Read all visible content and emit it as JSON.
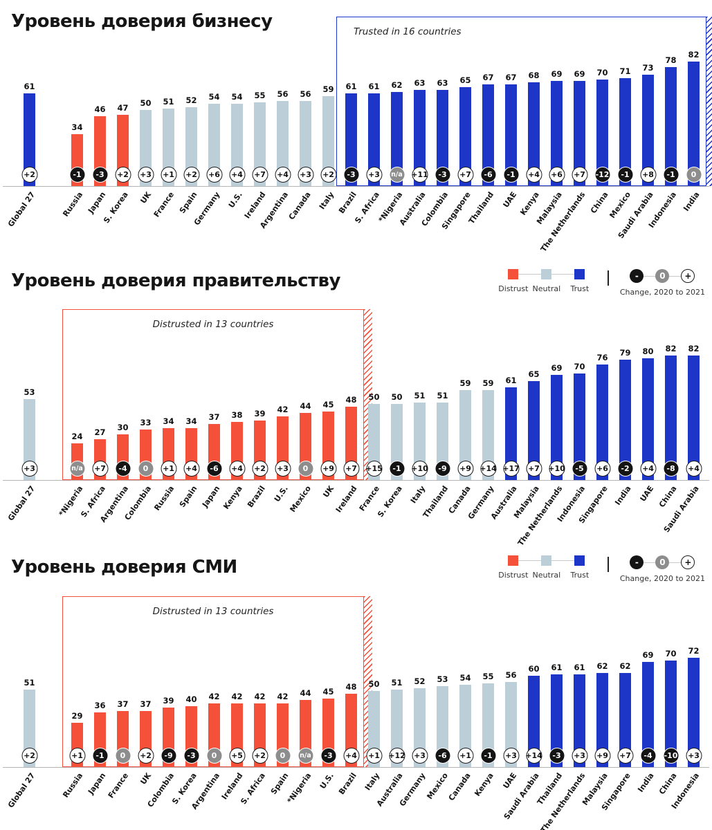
{
  "page": {
    "legend": {
      "distrust_label": "Distrust",
      "neutral_label": "Neutral",
      "trust_label": "Trust",
      "minus_symbol": "-",
      "zero_symbol": "0",
      "plus_symbol": "+",
      "change_label": "Change, 2020 to 2021"
    },
    "colors": {
      "distrust": "#f5503a",
      "neutral": "#bccfd9",
      "trust": "#1e36c8",
      "badge_negative": "#141414",
      "badge_zero": "#8d8d8d",
      "axis": "#b5b5b5"
    }
  },
  "chart_data": [
    {
      "type": "bar",
      "title": "Уровень доверия бизнесу",
      "ylim": [
        0,
        100
      ],
      "legend_visible": false,
      "annotation": {
        "label": "Trusted in 16 countries",
        "kind": "trust",
        "start": 13,
        "end": 28,
        "align": "left"
      },
      "bars": [
        {
          "label": "Global 27",
          "value": 61,
          "change": "+2"
        },
        {
          "label": "Russia",
          "value": 34,
          "change": "-1"
        },
        {
          "label": "Japan",
          "value": 46,
          "change": "-3"
        },
        {
          "label": "S. Korea",
          "value": 47,
          "change": "+2"
        },
        {
          "label": "UK",
          "value": 50,
          "change": "+3"
        },
        {
          "label": "France",
          "value": 51,
          "change": "+1"
        },
        {
          "label": "Spain",
          "value": 52,
          "change": "+2"
        },
        {
          "label": "Germany",
          "value": 54,
          "change": "+6"
        },
        {
          "label": "U.S.",
          "value": 54,
          "change": "+4"
        },
        {
          "label": "Ireland",
          "value": 55,
          "change": "+7"
        },
        {
          "label": "Argentina",
          "value": 56,
          "change": "+4"
        },
        {
          "label": "Canada",
          "value": 56,
          "change": "+3"
        },
        {
          "label": "Italy",
          "value": 59,
          "change": "+2"
        },
        {
          "label": "Brazil",
          "value": 61,
          "change": "-3"
        },
        {
          "label": "S. Africa",
          "value": 61,
          "change": "+3"
        },
        {
          "label": "*Nigeria",
          "value": 62,
          "change": "n/a"
        },
        {
          "label": "Australia",
          "value": 63,
          "change": "+11"
        },
        {
          "label": "Colombia",
          "value": 63,
          "change": "-3"
        },
        {
          "label": "Singapore",
          "value": 65,
          "change": "+7"
        },
        {
          "label": "Thailand",
          "value": 67,
          "change": "-6"
        },
        {
          "label": "UAE",
          "value": 67,
          "change": "-1"
        },
        {
          "label": "Kenya",
          "value": 68,
          "change": "+4"
        },
        {
          "label": "Malaysia",
          "value": 69,
          "change": "+6"
        },
        {
          "label": "The Netherlands",
          "value": 69,
          "change": "+7"
        },
        {
          "label": "China",
          "value": 70,
          "change": "-12"
        },
        {
          "label": "Mexico",
          "value": 71,
          "change": "-1"
        },
        {
          "label": "Saudi Arabia",
          "value": 73,
          "change": "+8"
        },
        {
          "label": "Indonesia",
          "value": 78,
          "change": "-1"
        },
        {
          "label": "India",
          "value": 82,
          "change": "0"
        }
      ]
    },
    {
      "type": "bar",
      "title": "Уровень доверия правительству",
      "ylim": [
        0,
        100
      ],
      "legend_visible": true,
      "annotation": {
        "label": "Distrusted in 13 countries",
        "kind": "distrust",
        "start": 1,
        "end": 13,
        "align": "center"
      },
      "bars": [
        {
          "label": "Global 27",
          "value": 53,
          "change": "+3"
        },
        {
          "label": "*Nigeria",
          "value": 24,
          "change": "n/a"
        },
        {
          "label": "S. Africa",
          "value": 27,
          "change": "+7"
        },
        {
          "label": "Argentina",
          "value": 30,
          "change": "-4"
        },
        {
          "label": "Colombia",
          "value": 33,
          "change": "0"
        },
        {
          "label": "Russia",
          "value": 34,
          "change": "+1"
        },
        {
          "label": "Spain",
          "value": 34,
          "change": "+4"
        },
        {
          "label": "Japan",
          "value": 37,
          "change": "-6"
        },
        {
          "label": "Kenya",
          "value": 38,
          "change": "+4"
        },
        {
          "label": "Brazil",
          "value": 39,
          "change": "+2"
        },
        {
          "label": "U.S.",
          "value": 42,
          "change": "+3"
        },
        {
          "label": "Mexico",
          "value": 44,
          "change": "0"
        },
        {
          "label": "UK",
          "value": 45,
          "change": "+9"
        },
        {
          "label": "Ireland",
          "value": 48,
          "change": "+7"
        },
        {
          "label": "France",
          "value": 50,
          "change": "+15"
        },
        {
          "label": "S. Korea",
          "value": 50,
          "change": "-1"
        },
        {
          "label": "Italy",
          "value": 51,
          "change": "+10"
        },
        {
          "label": "Thailand",
          "value": 51,
          "change": "-9"
        },
        {
          "label": "Canada",
          "value": 59,
          "change": "+9"
        },
        {
          "label": "Germany",
          "value": 59,
          "change": "+14"
        },
        {
          "label": "Australia",
          "value": 61,
          "change": "+17"
        },
        {
          "label": "Malaysia",
          "value": 65,
          "change": "+7"
        },
        {
          "label": "The Netherlands",
          "value": 69,
          "change": "+10"
        },
        {
          "label": "Indonesia",
          "value": 70,
          "change": "-5"
        },
        {
          "label": "Singapore",
          "value": 76,
          "change": "+6"
        },
        {
          "label": "India",
          "value": 79,
          "change": "-2"
        },
        {
          "label": "UAE",
          "value": 80,
          "change": "+4"
        },
        {
          "label": "China",
          "value": 82,
          "change": "-8"
        },
        {
          "label": "Saudi Arabia",
          "value": 82,
          "change": "+4"
        }
      ]
    },
    {
      "type": "bar",
      "title": "Уровень доверия СМИ",
      "ylim": [
        0,
        100
      ],
      "legend_visible": true,
      "annotation": {
        "label": "Distrusted in 13 countries",
        "kind": "distrust",
        "start": 1,
        "end": 13,
        "align": "center"
      },
      "bars": [
        {
          "label": "Global 27",
          "value": 51,
          "change": "+2"
        },
        {
          "label": "Russia",
          "value": 29,
          "change": "+1"
        },
        {
          "label": "Japan",
          "value": 36,
          "change": "-1"
        },
        {
          "label": "France",
          "value": 37,
          "change": "0"
        },
        {
          "label": "UK",
          "value": 37,
          "change": "+2"
        },
        {
          "label": "Colombia",
          "value": 39,
          "change": "-9"
        },
        {
          "label": "S. Korea",
          "value": 40,
          "change": "-3"
        },
        {
          "label": "Argentina",
          "value": 42,
          "change": "0"
        },
        {
          "label": "Ireland",
          "value": 42,
          "change": "+5"
        },
        {
          "label": "S. Africa",
          "value": 42,
          "change": "+2"
        },
        {
          "label": "Spain",
          "value": 42,
          "change": "0"
        },
        {
          "label": "*Nigeria",
          "value": 44,
          "change": "n/a"
        },
        {
          "label": "U.S.",
          "value": 45,
          "change": "-3"
        },
        {
          "label": "Brazil",
          "value": 48,
          "change": "+4"
        },
        {
          "label": "Italy",
          "value": 50,
          "change": "+1"
        },
        {
          "label": "Australia",
          "value": 51,
          "change": "+12"
        },
        {
          "label": "Germany",
          "value": 52,
          "change": "+3"
        },
        {
          "label": "Mexico",
          "value": 53,
          "change": "-6"
        },
        {
          "label": "Canada",
          "value": 54,
          "change": "+1"
        },
        {
          "label": "Kenya",
          "value": 55,
          "change": "-1"
        },
        {
          "label": "UAE",
          "value": 56,
          "change": "+3"
        },
        {
          "label": "Saudi Arabia",
          "value": 60,
          "change": "+14"
        },
        {
          "label": "Thailand",
          "value": 61,
          "change": "-3"
        },
        {
          "label": "The Netherlands",
          "value": 61,
          "change": "+3"
        },
        {
          "label": "Malaysia",
          "value": 62,
          "change": "+9"
        },
        {
          "label": "Singapore",
          "value": 62,
          "change": "+7"
        },
        {
          "label": "India",
          "value": 69,
          "change": "-4"
        },
        {
          "label": "China",
          "value": 70,
          "change": "-10"
        },
        {
          "label": "Indonesia",
          "value": 72,
          "change": "+3"
        }
      ]
    }
  ]
}
